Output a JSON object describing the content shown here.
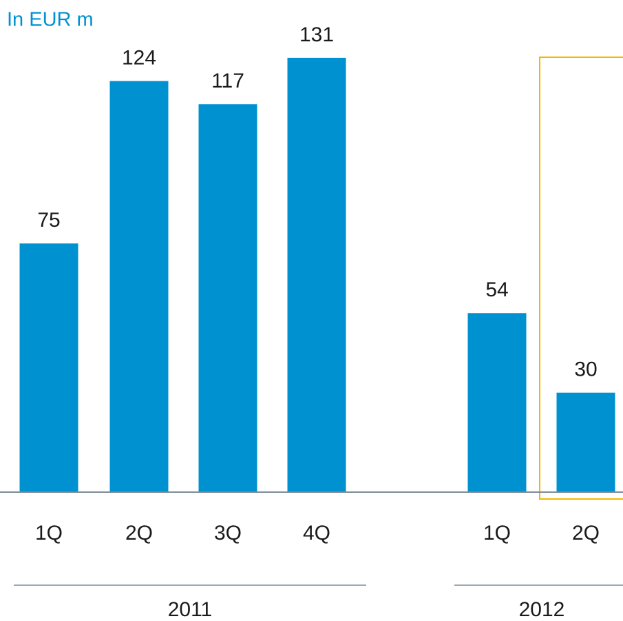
{
  "chart_data": {
    "type": "bar",
    "title": "In EUR m",
    "categories": [
      "1Q",
      "2Q",
      "3Q",
      "4Q",
      "1Q",
      "2Q"
    ],
    "values": [
      75,
      124,
      117,
      131,
      54,
      30
    ],
    "groups": [
      "2011",
      "2012"
    ],
    "color": "#0091d1",
    "highlight_color": "#f5b800"
  }
}
